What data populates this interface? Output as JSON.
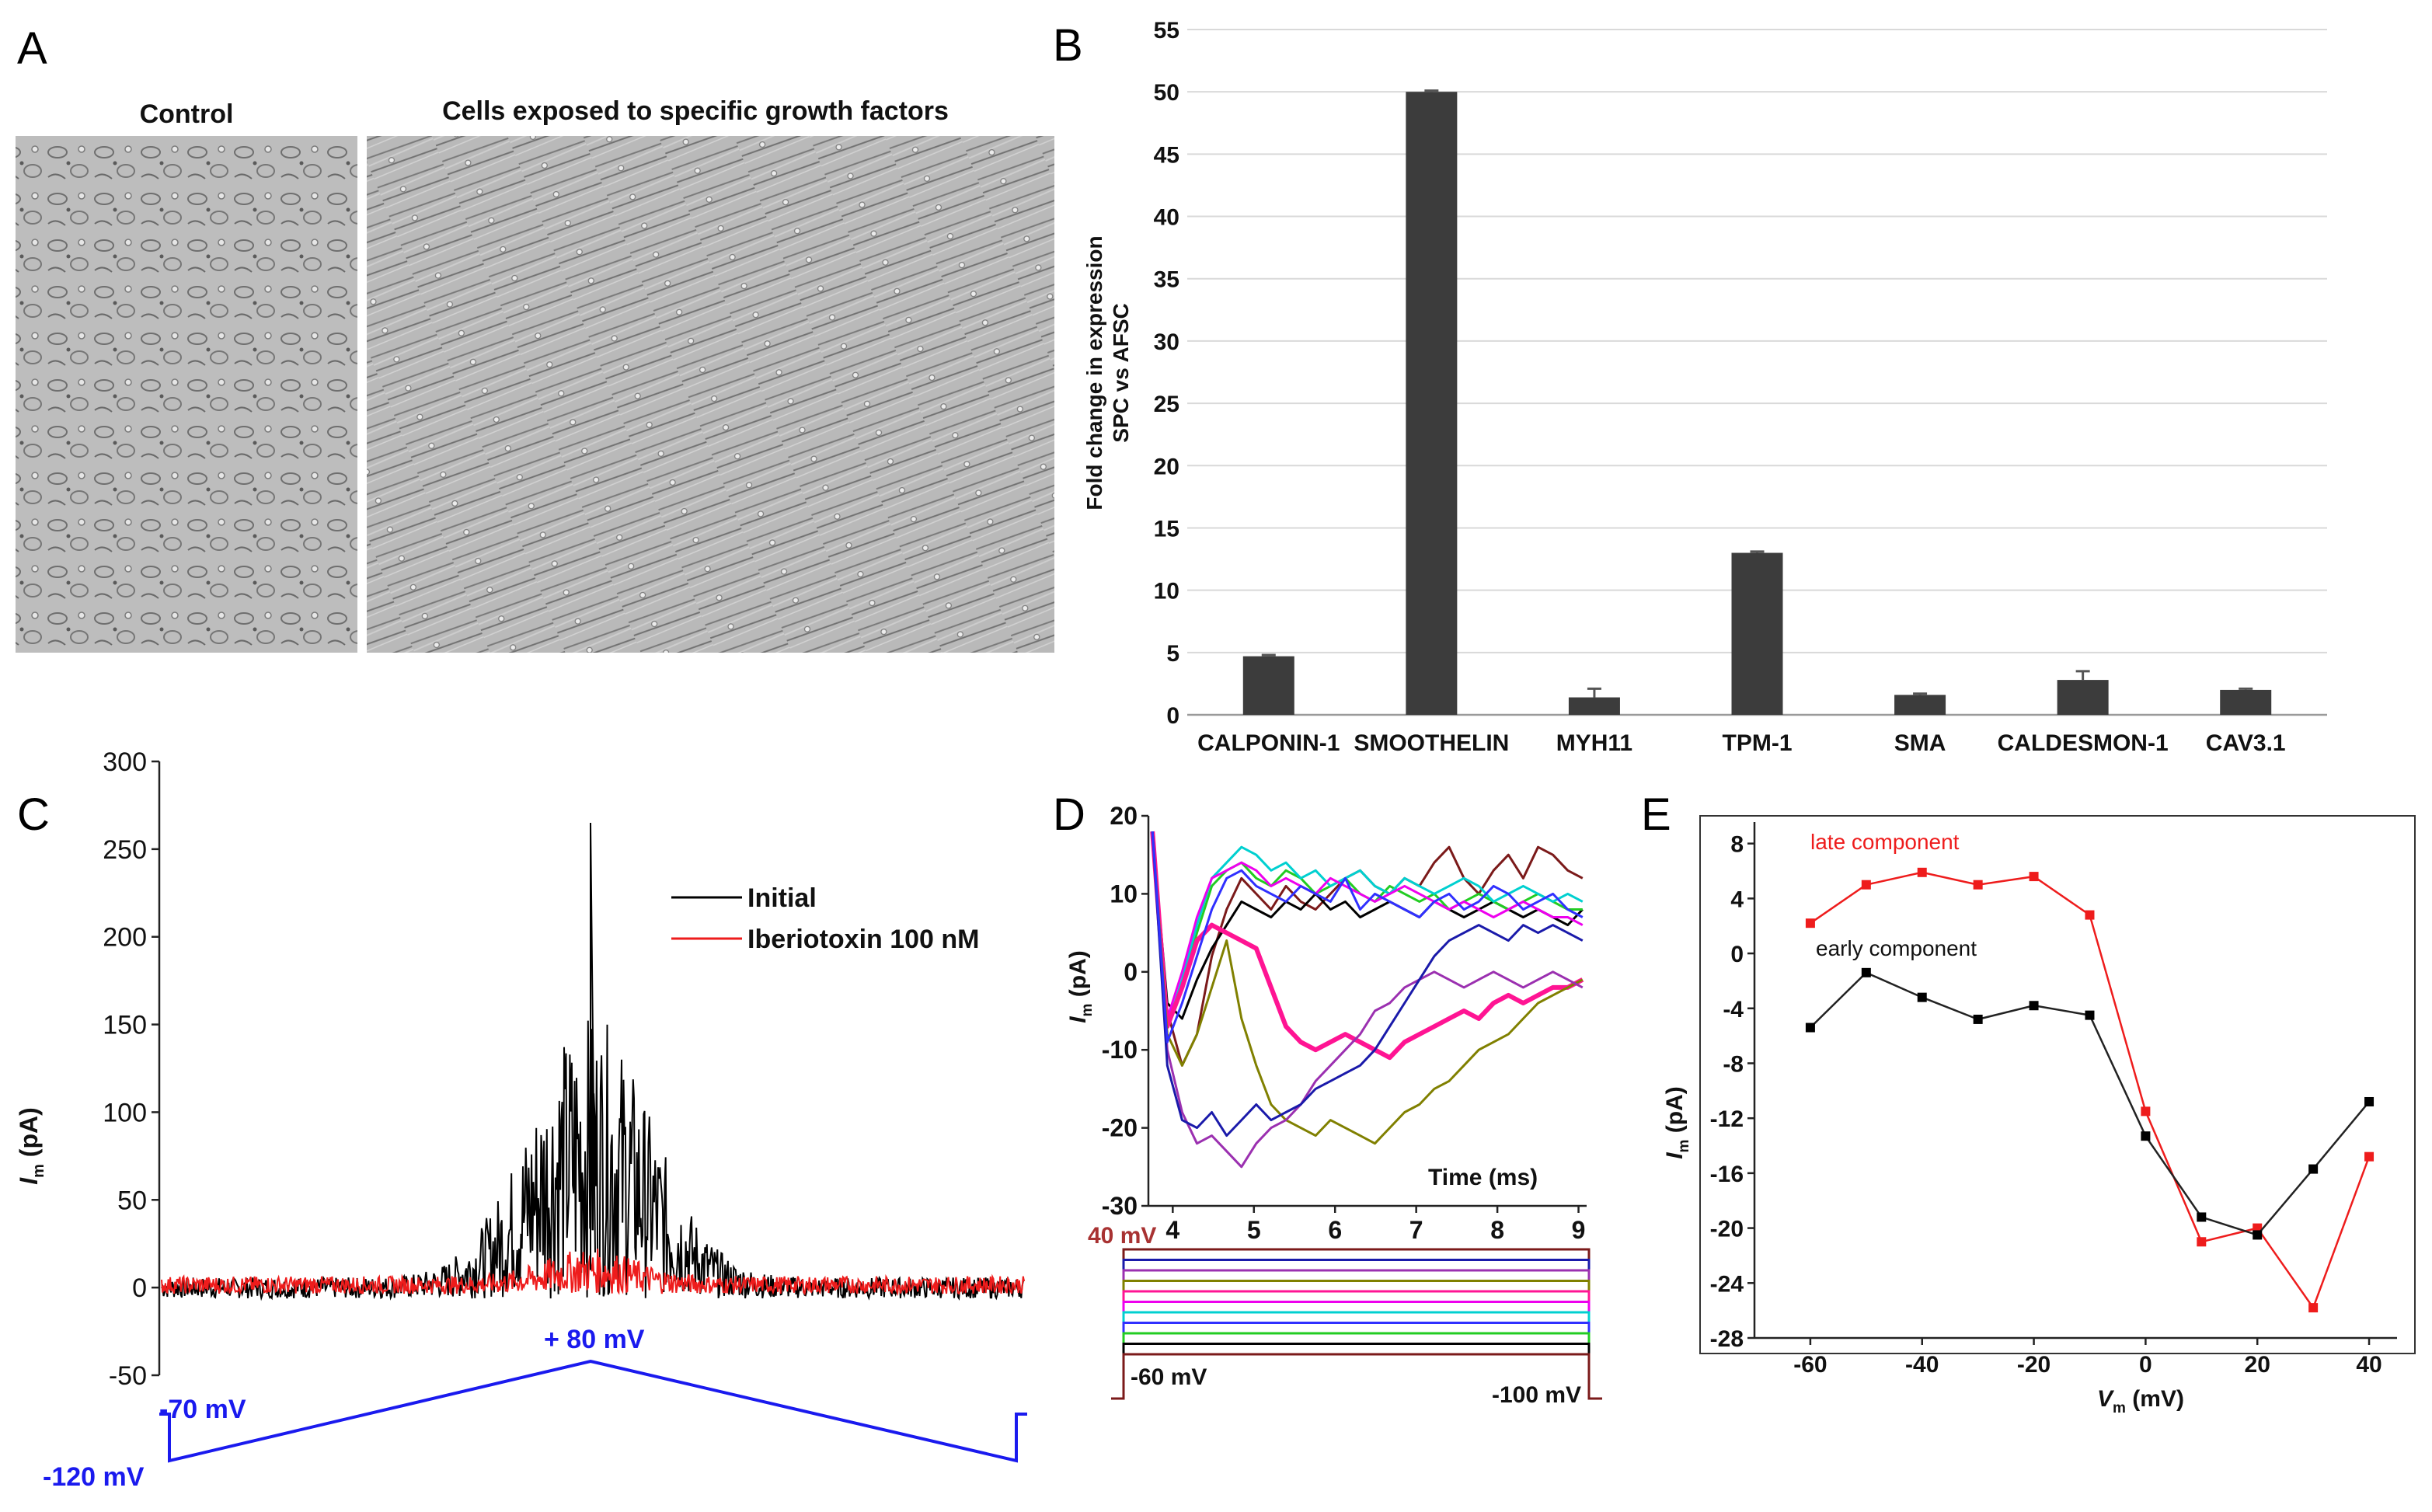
{
  "panels": {
    "A": {
      "label": "A",
      "left_title": "Control",
      "right_title": "Cells exposed to specific growth factors"
    },
    "B": {
      "label": "B"
    },
    "C": {
      "label": "C",
      "legend_initial": "Initial",
      "legend_iberiotoxin": "Iberiotoxin 100 nM",
      "voltage_peak": "+ 80 mV",
      "voltage_hold": "-70 mV",
      "voltage_start": "-120 mV",
      "ylabel_main": "I",
      "ylabel_sub": "m",
      "ylabel_unit": " (pA)",
      "colors": {
        "initial": "#000000",
        "iberiotoxin": "#ee1c1c",
        "protocol": "#1a1aee"
      }
    },
    "D": {
      "label": "D",
      "ylabel_main": "I",
      "ylabel_sub": "m",
      "ylabel_unit": " (pA)",
      "xlabel": "Time (ms)",
      "step_top": "40 mV",
      "step_bottom_left": "-60 mV",
      "step_bottom_right": "-100 mV"
    },
    "E": {
      "label": "E",
      "ylabel_main": "I",
      "ylabel_sub": "m",
      "ylabel_unit": " (pA)",
      "xlabel_main": "V",
      "xlabel_sub": "m",
      "xlabel_unit": " (mV)",
      "late_label": "late component",
      "early_label": "early component"
    }
  },
  "chart_data": [
    {
      "id": "B",
      "type": "bar",
      "title": "",
      "xlabel": "",
      "ylabel": "Fold change in expression",
      "ylabel2": "SPC vs AFSC",
      "ylim": [
        0,
        55
      ],
      "yticks": [
        "0",
        "5",
        "10",
        "15",
        "20",
        "25",
        "30",
        "35",
        "40",
        "45",
        "50",
        "55"
      ],
      "grid": true,
      "categories": [
        "CALPONIN-1",
        "SMOOTHELIN",
        "MYH11",
        "TPM-1",
        "SMA",
        "CALDESMON-1",
        "CAV3.1"
      ],
      "values": [
        4.7,
        50.0,
        1.4,
        13.0,
        1.6,
        2.8,
        2.0
      ],
      "errors": [
        0.1,
        0.1,
        0.7,
        0.1,
        0.1,
        0.7,
        0.1
      ],
      "bar_color": "#3c3c3c"
    },
    {
      "id": "C",
      "type": "line",
      "ylabel": "Im (pA)",
      "ylim": [
        -50,
        300
      ],
      "yticks": [
        "300",
        "250",
        "200",
        "150",
        "100",
        "50",
        "0",
        "-50"
      ],
      "series": [
        {
          "name": "Initial",
          "color": "#000000"
        },
        {
          "name": "Iberiotoxin 100 nM",
          "color": "#ee1c1c"
        }
      ],
      "protocol_mV": [
        -70,
        -120,
        80,
        -70
      ]
    },
    {
      "id": "D",
      "type": "line",
      "ylabel": "Im (pA)",
      "xlabel": "Time (ms)",
      "xlim": [
        3.7,
        9.1
      ],
      "ylim": [
        -30,
        20
      ],
      "xticks": [
        "4",
        "5",
        "6",
        "7",
        "8",
        "9"
      ],
      "yticks": [
        "20",
        "10",
        "0",
        "-10",
        "-20",
        "-30"
      ],
      "traces": [
        {
          "color": "#7b1a1a",
          "y": [
            18,
            -5,
            -12,
            -8,
            2,
            8,
            12,
            10,
            8,
            11,
            9,
            8,
            10,
            12,
            13,
            11,
            10,
            12,
            11,
            14,
            16,
            12,
            10,
            13,
            15,
            12,
            16,
            15,
            13,
            12
          ]
        },
        {
          "color": "#000000",
          "y": [
            18,
            -4,
            -6,
            -1,
            3,
            6,
            9,
            8,
            7,
            9,
            8,
            10,
            8,
            9,
            7,
            8,
            9,
            8,
            7,
            9,
            8,
            7,
            8,
            9,
            8,
            7,
            8,
            7,
            6,
            8
          ]
        },
        {
          "color": "#22cc22",
          "y": [
            18,
            -6,
            -2,
            5,
            11,
            13,
            14,
            12,
            11,
            13,
            12,
            10,
            11,
            12,
            10,
            9,
            11,
            10,
            9,
            10,
            8,
            9,
            10,
            9,
            8,
            9,
            10,
            9,
            8,
            8
          ]
        },
        {
          "color": "#00d0d0",
          "y": [
            18,
            -7,
            -1,
            6,
            12,
            14,
            16,
            15,
            13,
            14,
            12,
            13,
            11,
            12,
            13,
            11,
            10,
            12,
            11,
            10,
            11,
            12,
            11,
            9,
            10,
            11,
            10,
            9,
            10,
            9
          ]
        },
        {
          "color": "#ee00ee",
          "y": [
            18,
            -6,
            0,
            7,
            12,
            13,
            14,
            13,
            11,
            12,
            11,
            10,
            12,
            11,
            10,
            9,
            10,
            11,
            10,
            9,
            8,
            9,
            8,
            7,
            8,
            9,
            8,
            7,
            7,
            6
          ]
        },
        {
          "color": "#ff1493",
          "y": [
            18,
            -7,
            -2,
            4,
            6,
            5,
            4,
            3,
            -2,
            -7,
            -9,
            -10,
            -9,
            -8,
            -9,
            -10,
            -11,
            -9,
            -8,
            -7,
            -6,
            -5,
            -6,
            -4,
            -3,
            -4,
            -3,
            -2,
            -2,
            -1
          ]
        },
        {
          "color": "#808000",
          "y": [
            18,
            -8,
            -12,
            -8,
            -2,
            4,
            -6,
            -12,
            -17,
            -19,
            -20,
            -21,
            -19,
            -20,
            -21,
            -22,
            -20,
            -18,
            -17,
            -15,
            -14,
            -12,
            -10,
            -9,
            -8,
            -6,
            -4,
            -3,
            -2,
            -1
          ]
        },
        {
          "color": "#9b30b0",
          "y": [
            18,
            -10,
            -18,
            -22,
            -21,
            -23,
            -25,
            -22,
            -20,
            -19,
            -17,
            -14,
            -12,
            -10,
            -8,
            -5,
            -4,
            -2,
            -1,
            0,
            -1,
            -2,
            -1,
            0,
            -1,
            -2,
            -1,
            0,
            -1,
            -2
          ]
        },
        {
          "color": "#1a1aaa",
          "y": [
            18,
            -12,
            -19,
            -20,
            -18,
            -21,
            -19,
            -17,
            -19,
            -18,
            -17,
            -15,
            -14,
            -13,
            -12,
            -10,
            -7,
            -4,
            -1,
            2,
            4,
            5,
            6,
            5,
            4,
            6,
            5,
            6,
            5,
            4
          ]
        },
        {
          "color": "#3030ff",
          "y": [
            18,
            -9,
            -4,
            2,
            8,
            12,
            13,
            11,
            10,
            9,
            11,
            10,
            9,
            12,
            8,
            10,
            9,
            8,
            7,
            9,
            10,
            8,
            9,
            11,
            10,
            8,
            9,
            10,
            8,
            7
          ]
        }
      ]
    },
    {
      "id": "E",
      "type": "line",
      "xlabel": "Vm (mV)",
      "ylabel": "Im (pA)",
      "xlim": [
        -70,
        45
      ],
      "ylim": [
        -28,
        9
      ],
      "xticks": [
        "-60",
        "-40",
        "-20",
        "0",
        "20",
        "40"
      ],
      "yticks": [
        "8",
        "4",
        "0",
        "-4",
        "-8",
        "-12",
        "-16",
        "-20",
        "-24",
        "-28"
      ],
      "x": [
        -60,
        -50,
        -40,
        -30,
        -20,
        -10,
        0,
        10,
        20,
        30,
        40
      ],
      "series": [
        {
          "name": "late component",
          "color": "#ee1c1c",
          "values": [
            2.2,
            5.0,
            5.9,
            5.0,
            5.6,
            2.8,
            -11.5,
            -21.0,
            -20.0,
            -25.8,
            -14.8
          ]
        },
        {
          "name": "early component",
          "color": "#222222",
          "values": [
            -5.4,
            -1.4,
            -3.2,
            -4.8,
            -3.8,
            -4.5,
            -13.3,
            -19.2,
            -20.5,
            -15.7,
            -10.8
          ]
        }
      ]
    }
  ]
}
